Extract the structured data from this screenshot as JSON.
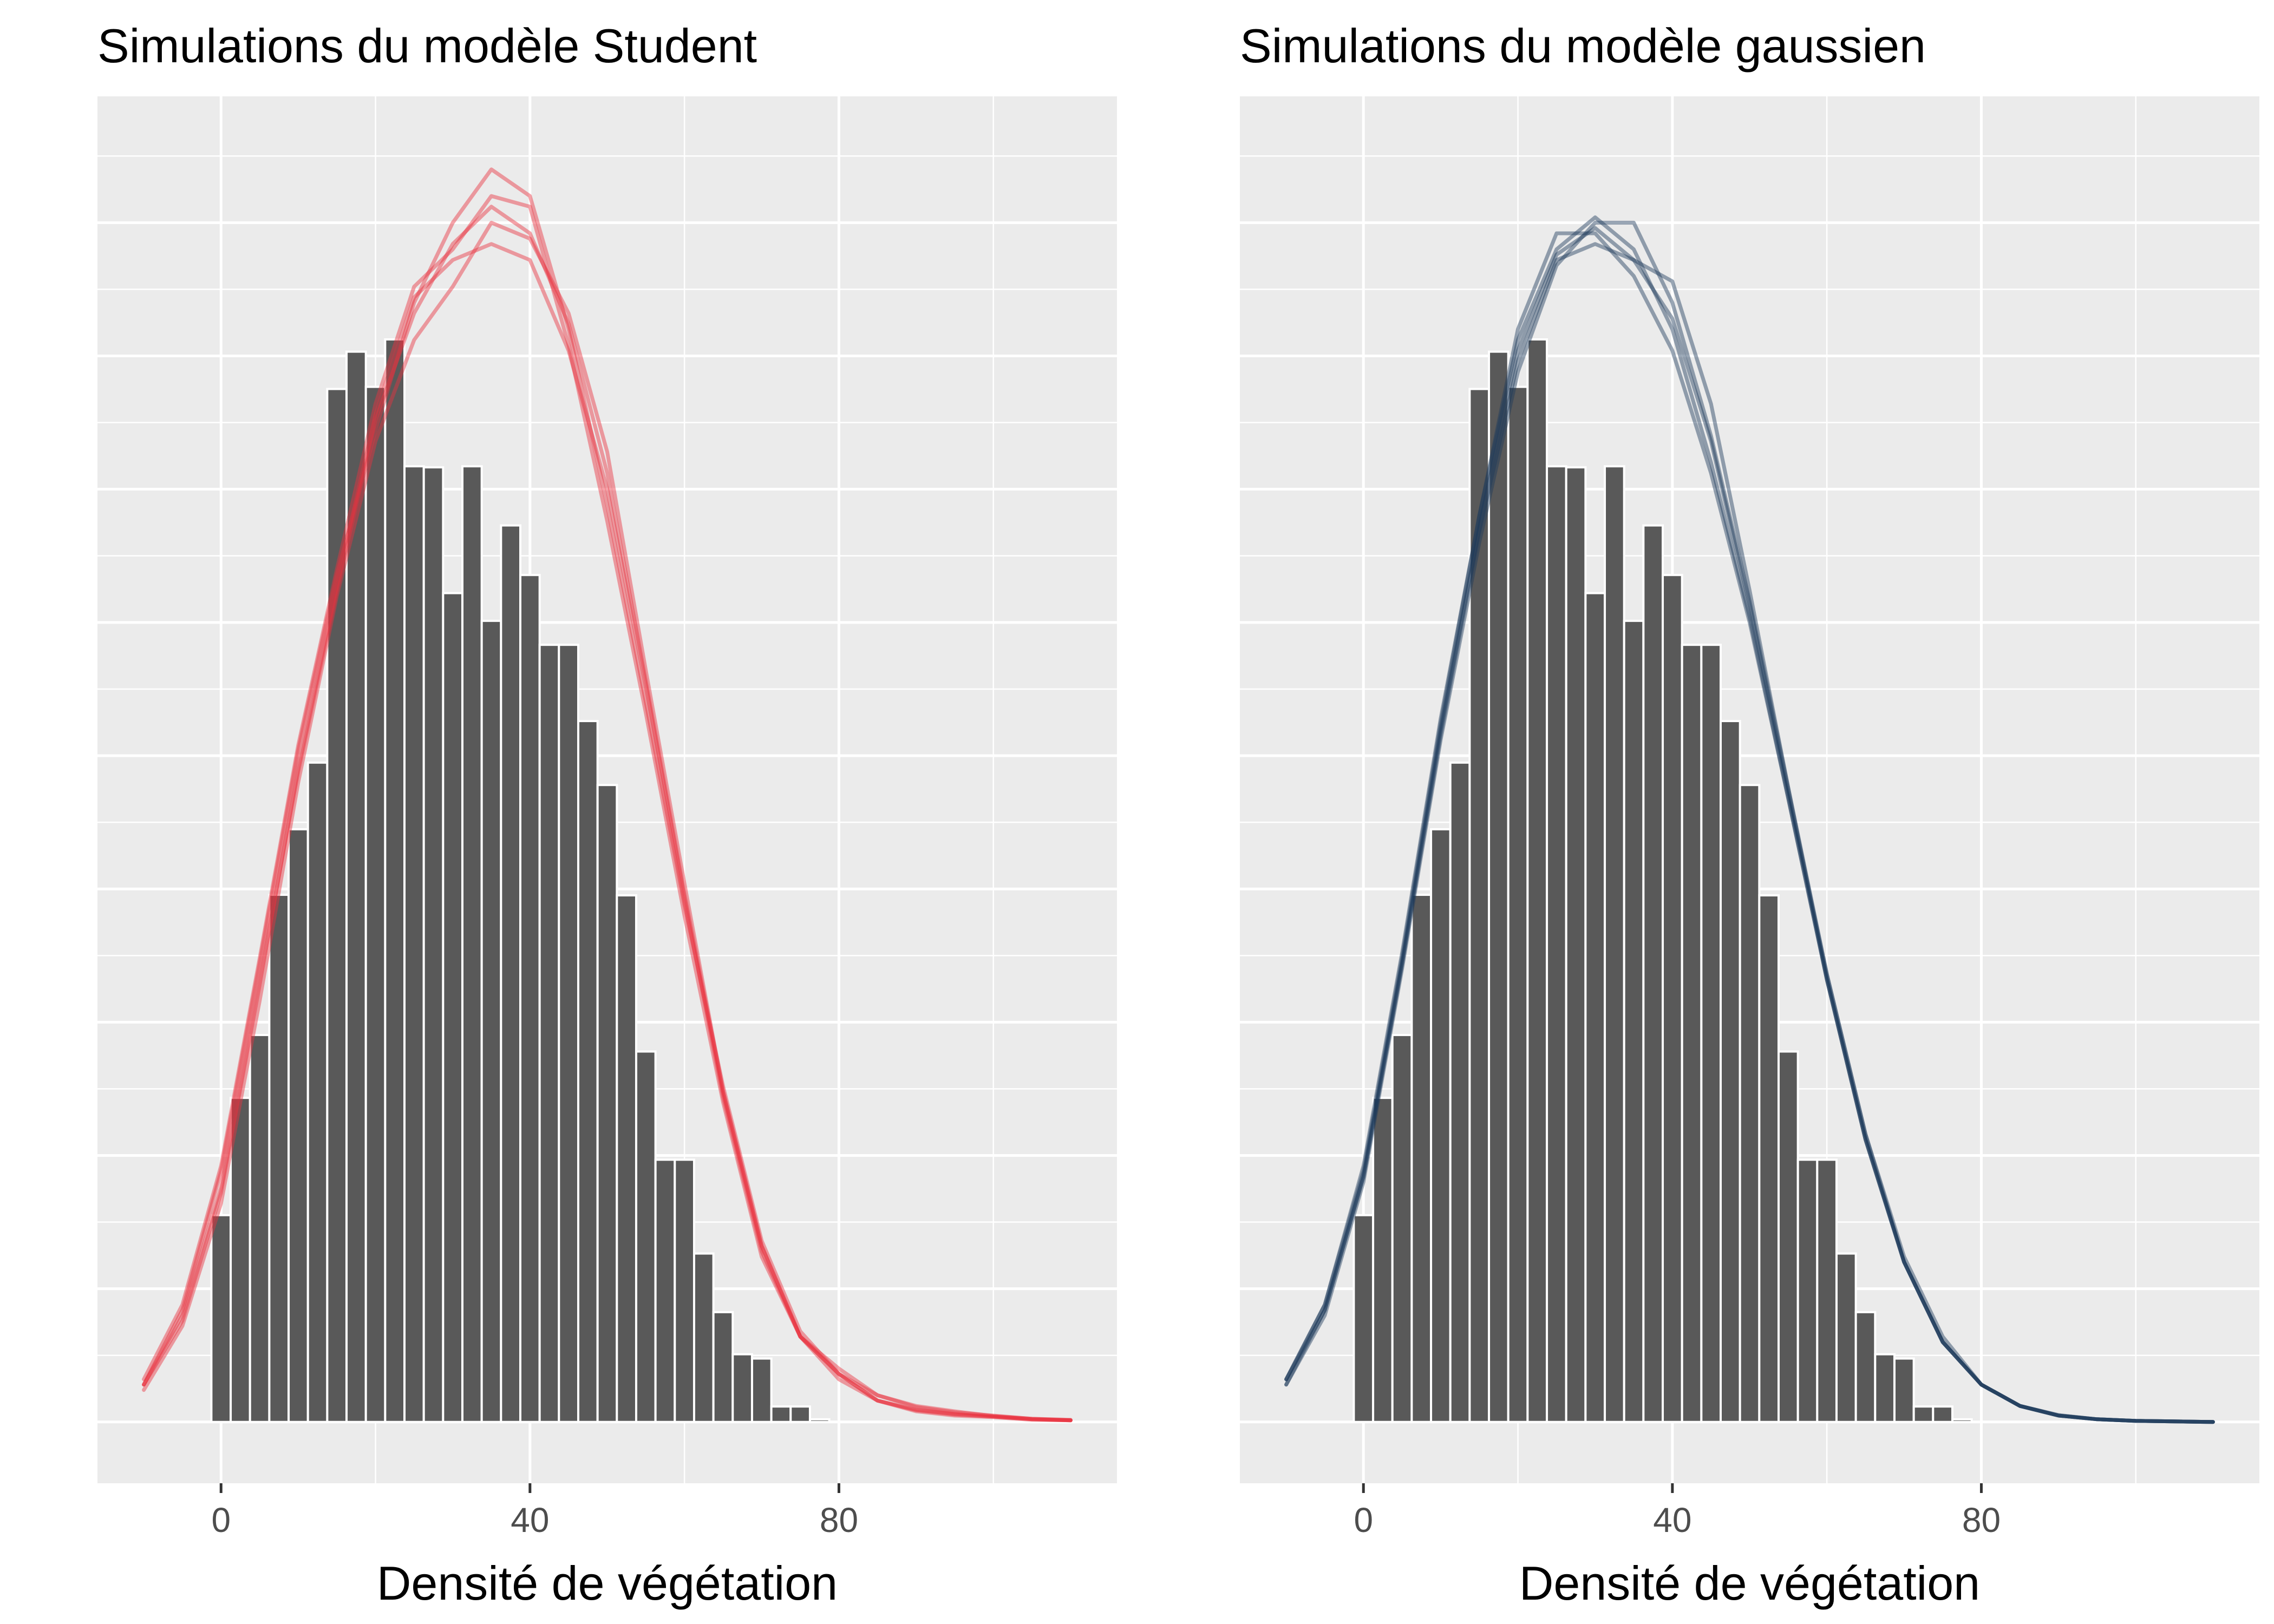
{
  "chart_data": [
    {
      "type": "histogram",
      "title": "Simulations du modèle Student",
      "xlabel": "Densité de végétation",
      "ylabel": "",
      "xlim": [
        -16,
        116
      ],
      "ylim": [
        -0.00115,
        0.02487
      ],
      "x_ticks": [
        0,
        40,
        80
      ],
      "y_axis_labels_shown": false,
      "grid": true,
      "legend": "none",
      "bar_color": "#595959",
      "line_color": "#e8303f",
      "bin_width": 2.5,
      "bin_start": -1.25,
      "bars": [
        0.00388,
        0.00608,
        0.00726,
        0.00989,
        0.01112,
        0.01237,
        0.01938,
        0.02008,
        0.01942,
        0.02031,
        0.01793,
        0.01791,
        0.01555,
        0.01793,
        0.01503,
        0.01682,
        0.01589,
        0.01458,
        0.01458,
        0.01315,
        0.01195,
        0.00988,
        0.00695,
        0.00492,
        0.00492,
        0.00316,
        0.00206,
        0.00127,
        0.00119,
        0.00029,
        0.00029,
        5e-05
      ],
      "density_curves": [
        {
          "x": [
            -10,
            -5,
            0,
            5,
            10,
            15,
            20,
            25,
            30,
            35,
            40,
            45,
            50,
            55,
            60,
            65,
            70,
            75,
            80,
            85,
            90,
            95,
            100,
            105,
            110
          ],
          "y": [
            0.0007,
            0.0019,
            0.0043,
            0.0082,
            0.0123,
            0.0157,
            0.0189,
            0.0211,
            0.0218,
            0.0221,
            0.0218,
            0.0201,
            0.0175,
            0.0138,
            0.0098,
            0.0061,
            0.0032,
            0.0016,
            0.0009,
            0.0004,
            0.00023,
            0.00015,
            0.0001,
            5e-05,
            3e-05
          ]
        },
        {
          "x": [
            -10,
            -5,
            0,
            5,
            10,
            15,
            20,
            25,
            30,
            35,
            40,
            45,
            50,
            55,
            60,
            65,
            70,
            75,
            80,
            85,
            90,
            95,
            100,
            105,
            110
          ],
          "y": [
            0.0007,
            0.0021,
            0.0047,
            0.0086,
            0.0126,
            0.0159,
            0.0186,
            0.021,
            0.0225,
            0.0235,
            0.023,
            0.0205,
            0.0172,
            0.0135,
            0.0097,
            0.0063,
            0.0034,
            0.0017,
            0.0009,
            0.0005,
            0.00028,
            0.00018,
            0.00012,
            6e-05,
            4e-05
          ]
        },
        {
          "x": [
            -10,
            -5,
            0,
            5,
            10,
            15,
            20,
            25,
            30,
            35,
            40,
            45,
            50,
            55,
            60,
            65,
            70,
            75,
            80,
            85,
            90,
            95,
            100,
            105,
            110
          ],
          "y": [
            0.0006,
            0.0018,
            0.0041,
            0.0079,
            0.012,
            0.0155,
            0.0184,
            0.0203,
            0.0213,
            0.0225,
            0.0222,
            0.0208,
            0.0182,
            0.0141,
            0.0101,
            0.0062,
            0.0033,
            0.0016,
            0.0008,
            0.0004,
            0.0002,
            0.00012,
            9e-05,
            4e-05,
            3e-05
          ]
        },
        {
          "x": [
            -10,
            -5,
            0,
            5,
            10,
            15,
            20,
            25,
            30,
            35,
            40,
            45,
            50,
            55,
            60,
            65,
            70,
            75,
            80,
            85,
            90,
            95,
            100,
            105,
            110
          ],
          "y": [
            0.0008,
            0.0022,
            0.0048,
            0.0087,
            0.0127,
            0.016,
            0.0191,
            0.0213,
            0.022,
            0.023,
            0.0228,
            0.0202,
            0.0169,
            0.0133,
            0.0095,
            0.006,
            0.0031,
            0.0016,
            0.001,
            0.0005,
            0.0003,
            0.0002,
            0.00011,
            6e-05,
            3e-05
          ]
        },
        {
          "x": [
            -10,
            -5,
            0,
            5,
            10,
            15,
            20,
            25,
            30,
            35,
            40,
            45,
            50,
            55,
            60,
            65,
            70,
            75,
            80,
            85,
            90,
            95,
            100,
            105,
            110
          ],
          "y": [
            0.0007,
            0.002,
            0.0044,
            0.0083,
            0.0122,
            0.0156,
            0.0188,
            0.0208,
            0.0221,
            0.0228,
            0.0223,
            0.0206,
            0.0178,
            0.0139,
            0.0099,
            0.0062,
            0.0033,
            0.0016,
            0.0009,
            0.0004,
            0.00022,
            0.00014,
            0.0001,
            5e-05,
            3e-05
          ]
        }
      ]
    },
    {
      "type": "histogram",
      "title": "Simulations du modèle gaussien",
      "xlabel": "Densité de végétation",
      "ylabel": "",
      "xlim": [
        -16,
        116
      ],
      "ylim": [
        -0.00115,
        0.02487
      ],
      "x_ticks": [
        0,
        40,
        80
      ],
      "y_axis_labels_shown": false,
      "grid": true,
      "legend": "none",
      "bar_color": "#595959",
      "line_color": "#1d3a5c",
      "bin_width": 2.5,
      "bin_start": -1.25,
      "bars": [
        0.00388,
        0.00608,
        0.00726,
        0.00989,
        0.01112,
        0.01237,
        0.01938,
        0.02008,
        0.01942,
        0.02031,
        0.01793,
        0.01791,
        0.01555,
        0.01793,
        0.01503,
        0.01682,
        0.01589,
        0.01458,
        0.01458,
        0.01315,
        0.01195,
        0.00988,
        0.00695,
        0.00492,
        0.00492,
        0.00316,
        0.00206,
        0.00127,
        0.00119,
        0.00029,
        0.00029,
        5e-05
      ],
      "density_curves": [
        {
          "x": [
            -10,
            -5,
            0,
            5,
            10,
            15,
            20,
            25,
            30,
            35,
            40,
            45,
            50,
            55,
            60,
            65,
            70,
            75,
            80,
            85,
            90,
            95,
            100,
            105,
            110
          ],
          "y": [
            0.0008,
            0.0022,
            0.0047,
            0.0087,
            0.0131,
            0.017,
            0.0205,
            0.0223,
            0.0223,
            0.0215,
            0.0201,
            0.0178,
            0.015,
            0.0117,
            0.0083,
            0.0053,
            0.003,
            0.0015,
            0.0007,
            0.0003,
            0.00012,
            5e-05,
            2e-05,
            1e-05,
            0.0
          ]
        },
        {
          "x": [
            -10,
            -5,
            0,
            5,
            10,
            15,
            20,
            25,
            30,
            35,
            40,
            45,
            50,
            55,
            60,
            65,
            70,
            75,
            80,
            85,
            90,
            95,
            100,
            105,
            110
          ],
          "y": [
            0.0007,
            0.002,
            0.0045,
            0.0085,
            0.0128,
            0.0165,
            0.0197,
            0.0217,
            0.0225,
            0.0225,
            0.021,
            0.0185,
            0.0154,
            0.0119,
            0.0084,
            0.0054,
            0.0031,
            0.0016,
            0.0007,
            0.0003,
            0.00013,
            5e-05,
            2e-05,
            1e-05,
            0.0
          ]
        },
        {
          "x": [
            -10,
            -5,
            0,
            5,
            10,
            15,
            20,
            25,
            30,
            35,
            40,
            45,
            50,
            55,
            60,
            65,
            70,
            75,
            80,
            85,
            90,
            95,
            100,
            105,
            110
          ],
          "y": [
            0.0008,
            0.0021,
            0.0046,
            0.0086,
            0.0129,
            0.0167,
            0.0199,
            0.0218,
            0.0221,
            0.0218,
            0.0214,
            0.0191,
            0.0156,
            0.0119,
            0.0083,
            0.0053,
            0.003,
            0.0015,
            0.0007,
            0.0003,
            0.00012,
            5e-05,
            2e-05,
            1e-05,
            0.0
          ]
        },
        {
          "x": [
            -10,
            -5,
            0,
            5,
            10,
            15,
            20,
            25,
            30,
            35,
            40,
            45,
            50,
            55,
            60,
            65,
            70,
            75,
            80,
            85,
            90,
            95,
            100,
            105,
            110
          ],
          "y": [
            0.0008,
            0.0022,
            0.0048,
            0.0088,
            0.0132,
            0.017,
            0.0203,
            0.022,
            0.0226,
            0.022,
            0.0205,
            0.018,
            0.0151,
            0.0117,
            0.0083,
            0.0053,
            0.003,
            0.0015,
            0.0007,
            0.0003,
            0.00012,
            5e-05,
            2e-05,
            1e-05,
            0.0
          ]
        },
        {
          "x": [
            -10,
            -5,
            0,
            5,
            10,
            15,
            20,
            25,
            30,
            35,
            40,
            45,
            50,
            55,
            60,
            65,
            70,
            75,
            80,
            85,
            90,
            95,
            100,
            105,
            110
          ],
          "y": [
            0.0007,
            0.0021,
            0.0046,
            0.0086,
            0.013,
            0.0168,
            0.0201,
            0.0219,
            0.0224,
            0.0218,
            0.0207,
            0.0184,
            0.0153,
            0.0118,
            0.0084,
            0.0054,
            0.003,
            0.0015,
            0.0007,
            0.0003,
            0.00012,
            5e-05,
            2e-05,
            1e-05,
            0.0
          ]
        }
      ]
    }
  ]
}
